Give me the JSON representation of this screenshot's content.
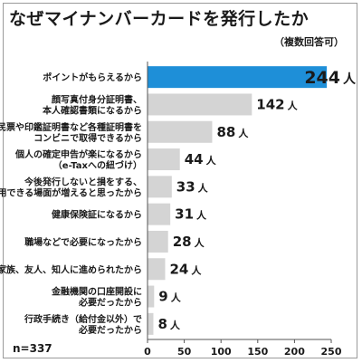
{
  "title": "なぜマイナンバーカードを発行したか",
  "subtitle": "（複数回答可）",
  "sample_size": "n=337",
  "unit": "人",
  "colors": {
    "highlight_bar": "#1e8fd8",
    "bar": "#d4d4d4",
    "highlight_value": "#1e8fd8",
    "axis": "#555555"
  },
  "chart_data": {
    "type": "bar",
    "orientation": "horizontal",
    "title": "なぜマイナンバーカードを発行したか",
    "subtitle": "（複数回答可）",
    "categories": [
      [
        "ポイントがもらえるから"
      ],
      [
        "顔写真付身分証明書、",
        "本人確認書類になるから"
      ],
      [
        "住民票や印鑑証明書など各種証明書を",
        "コンビニで取得できるから"
      ],
      [
        "個人の確定申告が楽になるから",
        "（e-Taxへの紐づけ）"
      ],
      [
        "今後発行しないと損をする、",
        "利用できる場面が増えると思ったから"
      ],
      [
        "健康保険証になるから"
      ],
      [
        "職場などで必要になったから"
      ],
      [
        "家族、友人、知人に進められたから"
      ],
      [
        "金融機関の口座開設に",
        "必要だったから"
      ],
      [
        "行政手続き（給付金以外）で",
        "必要だったから"
      ]
    ],
    "values": [
      244,
      142,
      88,
      44,
      33,
      31,
      28,
      24,
      9,
      8
    ],
    "highlight_index": 0,
    "xlim": [
      0,
      250
    ],
    "xticks": [
      0,
      50,
      100,
      150,
      200,
      250
    ],
    "grid": false
  }
}
